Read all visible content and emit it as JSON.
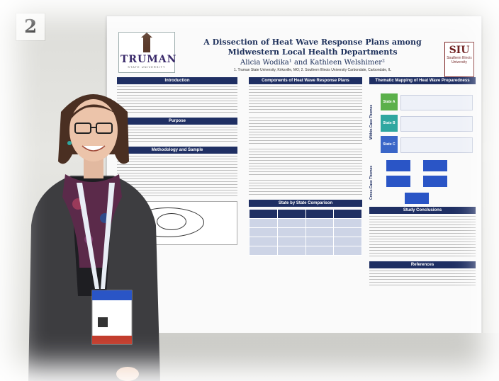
{
  "booth_number": "2",
  "poster": {
    "title_line1": "A Dissection of Heat Wave Response Plans among",
    "title_line2": "Midwestern Local Health Departments",
    "authors": "Alicia Wodika¹ and Kathleen Welshimer²",
    "affiliations": "1. Truman State University, Kirksville, MO; 2. Southern Illinois University Carbondale, Carbondale, IL",
    "logo_left": "TRUMAN",
    "logo_left_sub": "STATE UNIVERSITY",
    "logo_right": "SIU",
    "logo_right_sub": "Southern Illinois University",
    "sections": {
      "introduction": "Introduction",
      "purpose": "Purpose",
      "methodology": "Methodology and Sample",
      "components": "Components of Heat Wave Response Plans",
      "comparison": "State by State Comparison",
      "thematic": "Thematic Mapping of Heat Wave Preparedness",
      "conclusions": "Study Conclusions",
      "references": "References"
    },
    "themes": [
      "State A",
      "State B",
      "State C"
    ],
    "within_case": "Within-Case Themes",
    "cross_case": "Cross-Case Themes"
  },
  "colors": {
    "poster_header": "#1f2f63",
    "cardigan": "#3d3d40",
    "hair": "#4a2f22",
    "lanyard": "#e8edf5"
  }
}
